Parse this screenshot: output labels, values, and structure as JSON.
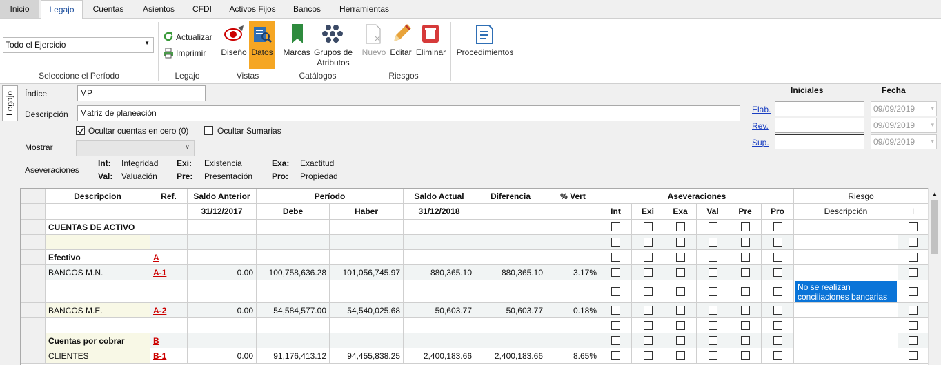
{
  "tabs": [
    "Inicio",
    "Legajo",
    "Cuentas",
    "Asientos",
    "CFDI",
    "Activos Fijos",
    "Bancos",
    "Herramientas"
  ],
  "active_tab": 1,
  "ribbon": {
    "period": {
      "value": "Todo el Ejercicio",
      "label": "Seleccione el Período"
    },
    "legajo": {
      "buttons": [
        "Actualizar",
        "Imprimir"
      ],
      "label": "Legajo"
    },
    "vistas": {
      "buttons": [
        "Diseño",
        "Datos"
      ],
      "label": "Vistas"
    },
    "catalogos": {
      "buttons": [
        "Marcas",
        "Grupos de Atributos"
      ],
      "label": "Catálogos"
    },
    "riesgos": {
      "buttons": [
        "Nuevo",
        "Editar",
        "Eliminar"
      ],
      "label": "Riesgos"
    },
    "procedimientos": {
      "buttons": [
        "Procedimientos"
      ]
    }
  },
  "side_tab": "Legajo",
  "form": {
    "indice_label": "Índice",
    "indice": "MP",
    "descripcion_label": "Descripción",
    "descripcion": "Matriz de planeación",
    "checkboxes": [
      {
        "label": "Ocultar cuentas en cero (0)",
        "checked": true
      },
      {
        "label": "Ocultar Sumarias",
        "checked": false
      }
    ],
    "mostrar_label": "Mostrar",
    "aseveraciones_label": "Aseveraciones",
    "aseveraciones": [
      {
        "code": "Int:",
        "name": "Integridad"
      },
      {
        "code": "Exi:",
        "name": "Existencia"
      },
      {
        "code": "Exa:",
        "name": "Exactitud"
      },
      {
        "code": "Val:",
        "name": "Valuación"
      },
      {
        "code": "Pre:",
        "name": "Presentación"
      },
      {
        "code": "Pro:",
        "name": "Propiedad"
      }
    ]
  },
  "signoff": {
    "headers": [
      "Iniciales",
      "Fecha"
    ],
    "rows": [
      {
        "label": "Elab.",
        "date": "09/09/2019"
      },
      {
        "label": "Rev.",
        "date": "09/09/2019"
      },
      {
        "label": "Sup.",
        "date": "09/09/2019"
      }
    ]
  },
  "table": {
    "header1": [
      "Descripcion",
      "Ref.",
      "Saldo Anterior",
      "Período",
      "Saldo Actual",
      "Diferencia",
      "% Vert",
      "Aseveraciones",
      "Riesgo"
    ],
    "header2": [
      null,
      null,
      "31/12/2017",
      "Debe",
      "Haber",
      "31/12/2018",
      null,
      null,
      "Int",
      "Exi",
      "Exa",
      "Val",
      "Pre",
      "Pro",
      "Descripción",
      "I"
    ],
    "rows": [
      {
        "bold": true,
        "cells": [
          "CUENTAS DE ACTIVO",
          null,
          null,
          null,
          null,
          null,
          null,
          null,
          null
        ]
      },
      {
        "bold": false,
        "cells": [
          null,
          null,
          null,
          null,
          null,
          null,
          null,
          null,
          null
        ]
      },
      {
        "bold": true,
        "cells": [
          "Efectivo",
          "A",
          null,
          null,
          null,
          null,
          null,
          null,
          null
        ]
      },
      {
        "bold": false,
        "cells": [
          "BANCOS M.N.",
          "A-1",
          "0.00",
          "100,758,636.28",
          "101,056,745.97",
          "880,365.10",
          "880,365.10",
          "3.17%",
          null
        ]
      },
      {
        "bold": false,
        "cells": [
          null,
          null,
          null,
          null,
          null,
          null,
          null,
          null,
          "No se realizan conciliaciones bancarias"
        ]
      },
      {
        "bold": false,
        "cells": [
          "BANCOS M.E.",
          "A-2",
          "0.00",
          "54,584,577.00",
          "54,540,025.68",
          "50,603.77",
          "50,603.77",
          "0.18%",
          null
        ]
      },
      {
        "bold": false,
        "cells": [
          null,
          null,
          null,
          null,
          null,
          null,
          null,
          null,
          null
        ]
      },
      {
        "bold": true,
        "cells": [
          "Cuentas por cobrar",
          "B",
          null,
          null,
          null,
          null,
          null,
          null,
          null
        ]
      },
      {
        "bold": false,
        "cells": [
          "CLIENTES",
          "B-1",
          "0.00",
          "91,176,413.12",
          "94,455,838.25",
          "2,400,183.66",
          "2,400,183.66",
          "8.65%",
          null
        ]
      }
    ]
  }
}
